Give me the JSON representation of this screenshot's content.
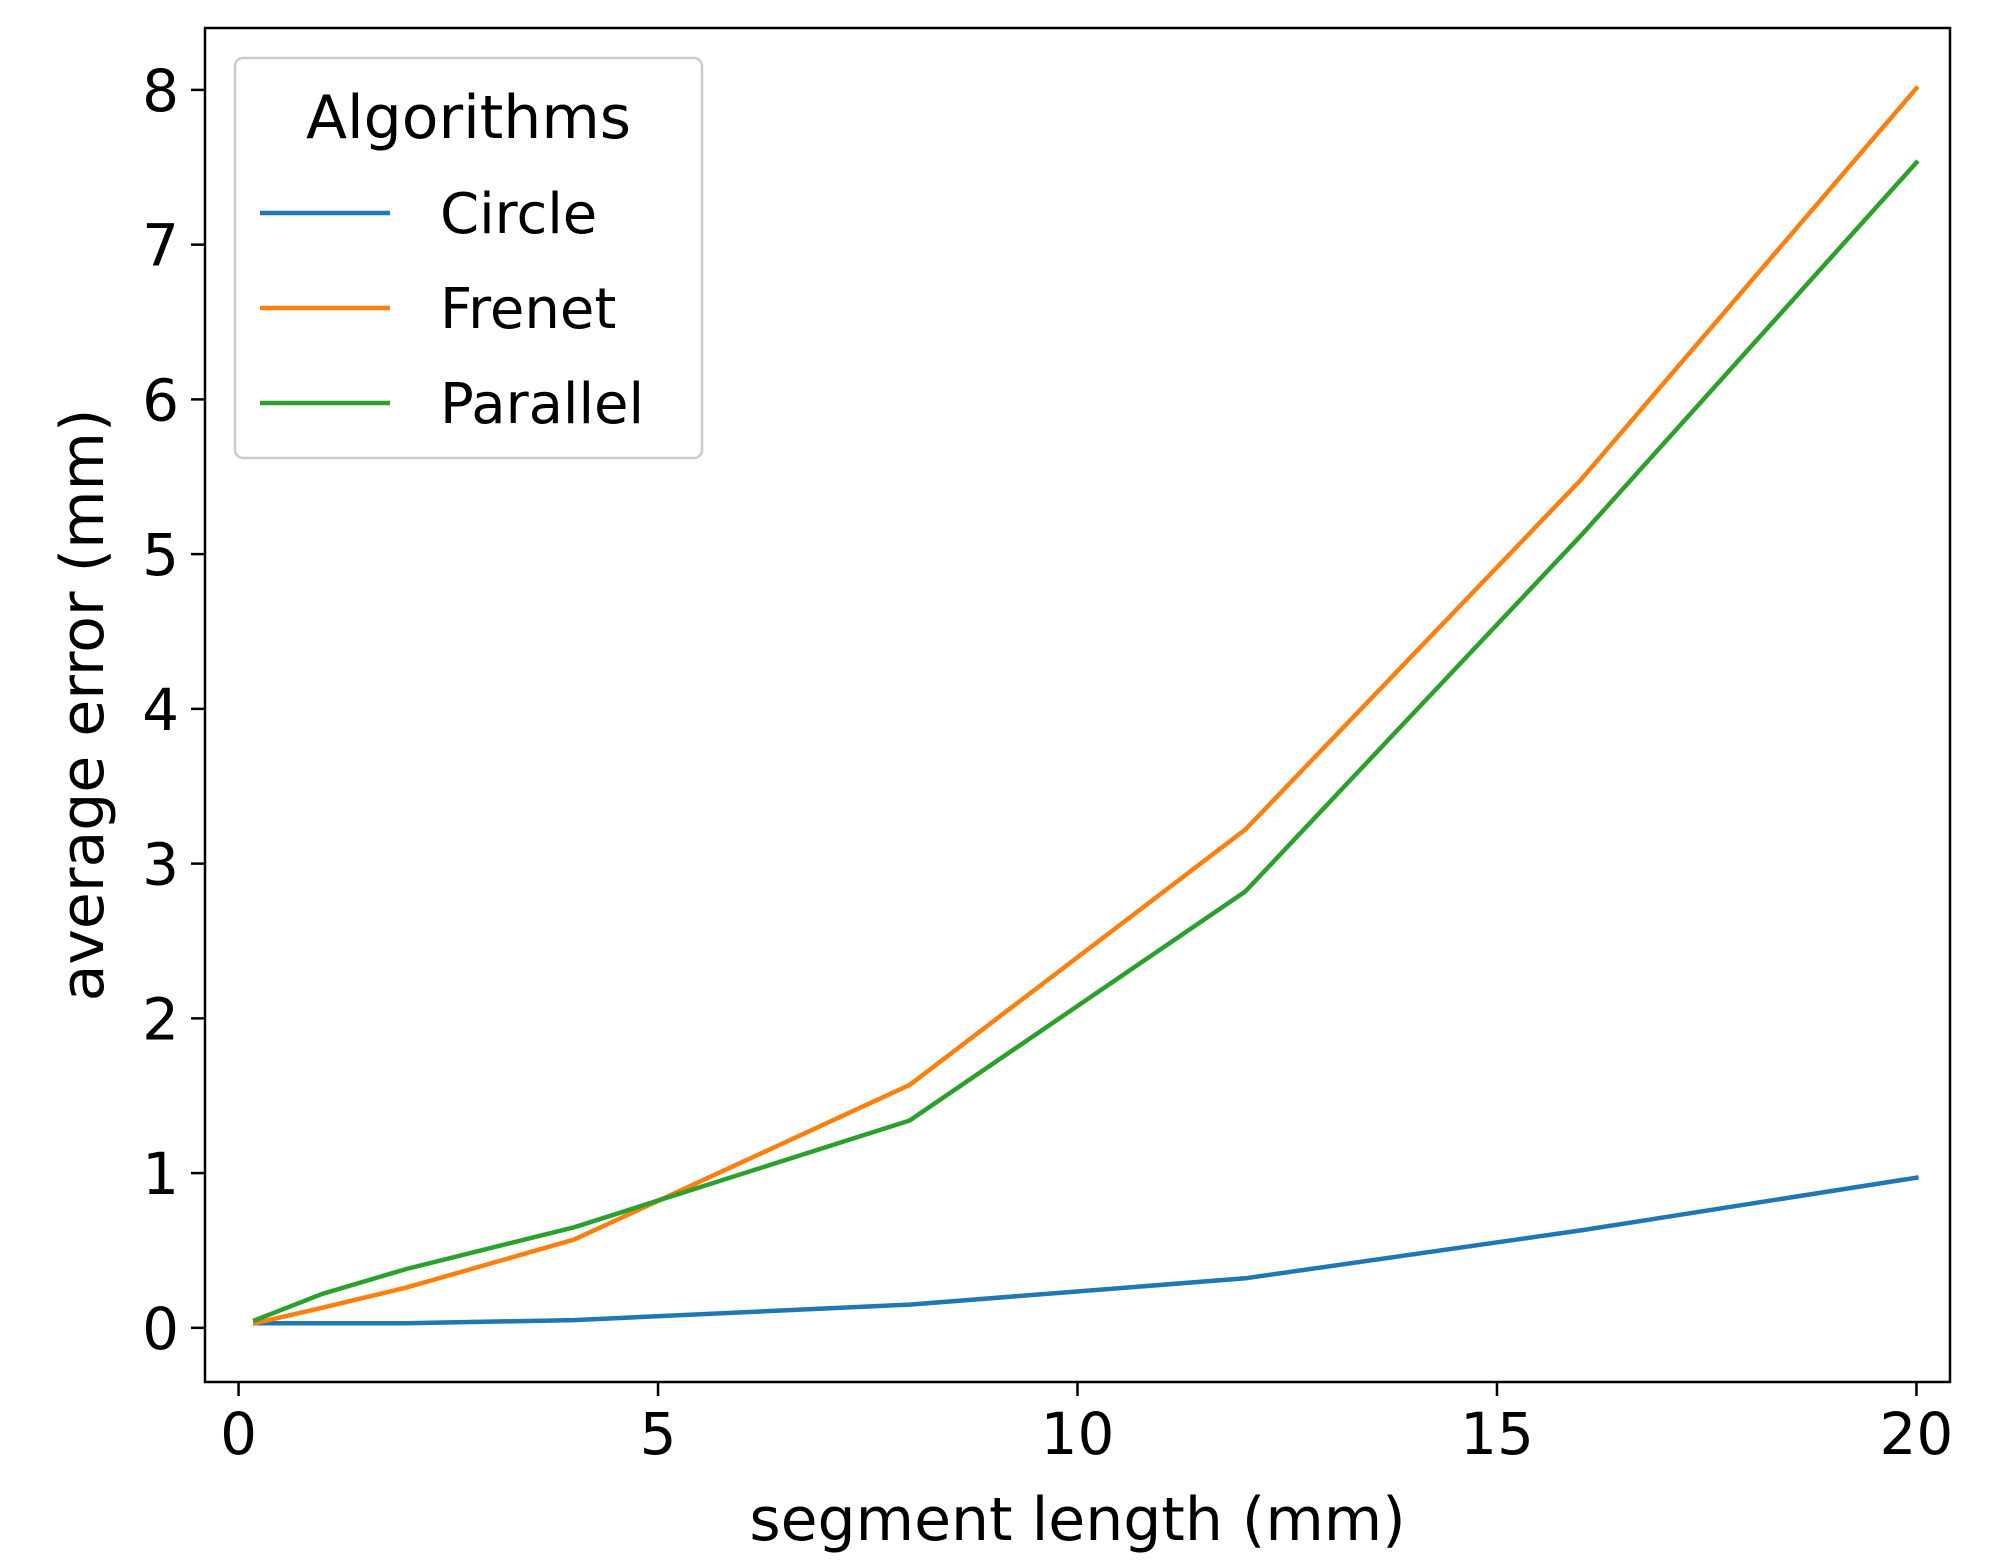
{
  "chart_data": {
    "type": "line",
    "xlabel": "segment length (mm)",
    "ylabel": "average error (mm)",
    "xlim": [
      -0.4,
      20.4
    ],
    "ylim": [
      -0.35,
      8.4
    ],
    "xticks": [
      0,
      5,
      10,
      15,
      20
    ],
    "yticks": [
      0,
      1,
      2,
      3,
      4,
      5,
      6,
      7,
      8
    ],
    "xtick_labels": [
      "0",
      "5",
      "10",
      "15",
      "20"
    ],
    "ytick_labels": [
      "0",
      "1",
      "2",
      "3",
      "4",
      "5",
      "6",
      "7",
      "8"
    ],
    "grid": false,
    "legend": {
      "title": "Algorithms",
      "placement": "top-left"
    },
    "series": [
      {
        "name": "Circle",
        "color": "#1f77b4",
        "x": [
          0.2,
          1,
          2,
          4,
          8,
          12,
          16,
          20
        ],
        "y": [
          0.03,
          0.03,
          0.03,
          0.05,
          0.15,
          0.32,
          0.63,
          0.97
        ]
      },
      {
        "name": "Frenet",
        "color": "#ff7f0e",
        "x": [
          0.2,
          1,
          2,
          4,
          8,
          12,
          16,
          20
        ],
        "y": [
          0.03,
          0.13,
          0.26,
          0.57,
          1.57,
          3.22,
          5.48,
          8.01
        ]
      },
      {
        "name": "Parallel",
        "color": "#2ca02c",
        "x": [
          0.2,
          1,
          2,
          4,
          8,
          12,
          16,
          20
        ],
        "y": [
          0.05,
          0.22,
          0.38,
          0.65,
          1.34,
          2.82,
          5.12,
          7.53
        ]
      }
    ]
  }
}
